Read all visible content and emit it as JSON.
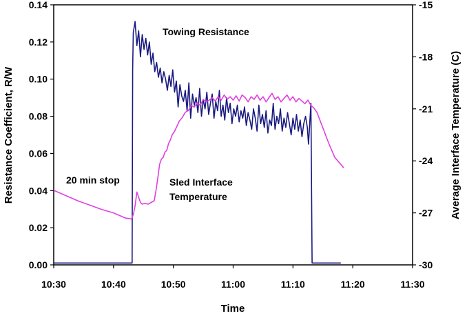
{
  "chart_data": {
    "type": "line",
    "title": "",
    "xlabel": "Time",
    "ylabel": "Resistance Coefficient, R/W",
    "y2label": "Average Interface Temperature (C)",
    "x_ticks": [
      "10:30",
      "10:40",
      "10:50",
      "11:00",
      "11:10",
      "11:20",
      "11:30"
    ],
    "y_ticks": [
      "0.00",
      "0.02",
      "0.04",
      "0.06",
      "0.08",
      "0.10",
      "0.12",
      "0.14"
    ],
    "y2_ticks": [
      "-30",
      "-27",
      "-24",
      "-21",
      "-18",
      "-15"
    ],
    "xlim": [
      0,
      60
    ],
    "ylim": [
      0,
      0.14
    ],
    "y2lim": [
      -30,
      -15
    ],
    "grid": false,
    "legend": "none",
    "annotations": [
      {
        "text": "Towing Resistance"
      },
      {
        "text": "20 min stop"
      },
      {
        "text": "Sled Interface",
        "text2": "Temperature"
      }
    ],
    "series": [
      {
        "label": "Towing Resistance",
        "axis": "left",
        "color": "#1a1a80",
        "x": [
          0,
          13.1,
          13.2,
          13.3,
          13.6,
          13.9,
          14.2,
          14.5,
          14.8,
          15.1,
          15.4,
          15.7,
          16.0,
          16.3,
          16.6,
          16.9,
          17.2,
          17.5,
          17.8,
          18.1,
          18.4,
          18.7,
          19.0,
          19.3,
          19.6,
          19.9,
          20.2,
          20.5,
          20.8,
          21.1,
          21.4,
          21.7,
          22.0,
          22.3,
          22.6,
          22.9,
          23.2,
          23.5,
          23.8,
          24.1,
          24.4,
          24.7,
          25.0,
          25.3,
          25.6,
          25.9,
          26.2,
          26.5,
          26.8,
          27.1,
          27.4,
          27.7,
          28.0,
          28.3,
          28.6,
          28.9,
          29.2,
          29.5,
          29.8,
          30.1,
          30.4,
          30.7,
          31.0,
          31.3,
          31.6,
          31.9,
          32.2,
          32.5,
          32.8,
          33.1,
          33.4,
          33.7,
          34.0,
          34.3,
          34.6,
          34.9,
          35.2,
          35.5,
          35.8,
          36.1,
          36.4,
          36.7,
          37.0,
          37.3,
          37.6,
          37.9,
          38.2,
          38.5,
          38.8,
          39.1,
          39.4,
          39.7,
          40.0,
          40.3,
          40.6,
          40.9,
          41.2,
          41.5,
          41.8,
          42.1,
          42.4,
          42.6,
          43.0,
          43.2,
          44.0,
          48.0
        ],
        "y": [
          0.001,
          0.001,
          0.105,
          0.125,
          0.131,
          0.118,
          0.126,
          0.112,
          0.124,
          0.116,
          0.122,
          0.113,
          0.12,
          0.108,
          0.114,
          0.104,
          0.109,
          0.101,
          0.106,
          0.098,
          0.104,
          0.1,
          0.094,
          0.102,
          0.096,
          0.105,
          0.093,
          0.099,
          0.085,
          0.097,
          0.091,
          0.088,
          0.094,
          0.083,
          0.098,
          0.079,
          0.092,
          0.086,
          0.09,
          0.082,
          0.095,
          0.08,
          0.089,
          0.084,
          0.093,
          0.081,
          0.087,
          0.092,
          0.079,
          0.088,
          0.083,
          0.094,
          0.08,
          0.086,
          0.078,
          0.09,
          0.082,
          0.087,
          0.076,
          0.084,
          0.08,
          0.086,
          0.077,
          0.083,
          0.079,
          0.085,
          0.075,
          0.082,
          0.078,
          0.073,
          0.084,
          0.079,
          0.072,
          0.086,
          0.076,
          0.081,
          0.074,
          0.083,
          0.071,
          0.078,
          0.075,
          0.087,
          0.073,
          0.08,
          0.076,
          0.084,
          0.072,
          0.079,
          0.074,
          0.082,
          0.076,
          0.07,
          0.079,
          0.073,
          0.081,
          0.072,
          0.078,
          0.069,
          0.076,
          0.08,
          0.074,
          0.065,
          0.087,
          0.001,
          0.001,
          0.001
        ]
      },
      {
        "label": "Sled Interface Temperature",
        "axis": "right",
        "color": "#e040e0",
        "x": [
          0,
          2,
          4,
          6,
          8,
          10,
          12,
          13.0,
          13.3,
          13.6,
          13.9,
          14.2,
          14.5,
          14.8,
          15.2,
          15.8,
          16.3,
          16.8,
          17.1,
          17.4,
          17.7,
          18.0,
          18.3,
          18.6,
          18.9,
          19.2,
          19.5,
          19.8,
          20.2,
          20.6,
          21.0,
          21.5,
          22.0,
          22.5,
          23.0,
          23.5,
          24.0,
          24.5,
          25.0,
          25.5,
          26.0,
          26.5,
          27.0,
          27.5,
          28.0,
          28.5,
          29.0,
          29.5,
          30.0,
          30.5,
          31.0,
          31.5,
          32.0,
          32.5,
          33.0,
          33.5,
          34.0,
          34.5,
          35.0,
          35.5,
          36.0,
          36.5,
          37.0,
          37.5,
          38.0,
          38.5,
          39.0,
          39.5,
          40.0,
          40.5,
          41.0,
          41.5,
          42.0,
          42.5,
          43.0,
          43.5,
          44.0,
          45.0,
          46.0,
          47.0,
          48.5
        ],
        "y": [
          -25.7,
          -26.0,
          -26.3,
          -26.55,
          -26.8,
          -27.0,
          -27.3,
          -27.35,
          -27.1,
          -26.6,
          -25.8,
          -26.1,
          -26.4,
          -26.5,
          -26.45,
          -26.5,
          -26.4,
          -26.3,
          -25.7,
          -25.0,
          -24.2,
          -23.9,
          -23.8,
          -23.5,
          -23.4,
          -23.0,
          -22.8,
          -22.5,
          -22.3,
          -22.0,
          -21.7,
          -21.5,
          -21.2,
          -21.1,
          -20.8,
          -20.9,
          -20.65,
          -20.8,
          -20.45,
          -20.6,
          -20.5,
          -20.35,
          -20.55,
          -20.3,
          -20.5,
          -20.2,
          -20.45,
          -20.3,
          -20.5,
          -20.25,
          -20.55,
          -20.2,
          -20.35,
          -20.6,
          -20.3,
          -20.45,
          -20.2,
          -20.5,
          -20.3,
          -20.6,
          -20.35,
          -20.1,
          -20.45,
          -20.3,
          -20.6,
          -20.4,
          -20.2,
          -20.5,
          -20.3,
          -20.6,
          -20.4,
          -20.55,
          -20.7,
          -20.5,
          -20.8,
          -20.95,
          -21.2,
          -22.1,
          -23.0,
          -23.8,
          -24.4
        ]
      }
    ]
  }
}
